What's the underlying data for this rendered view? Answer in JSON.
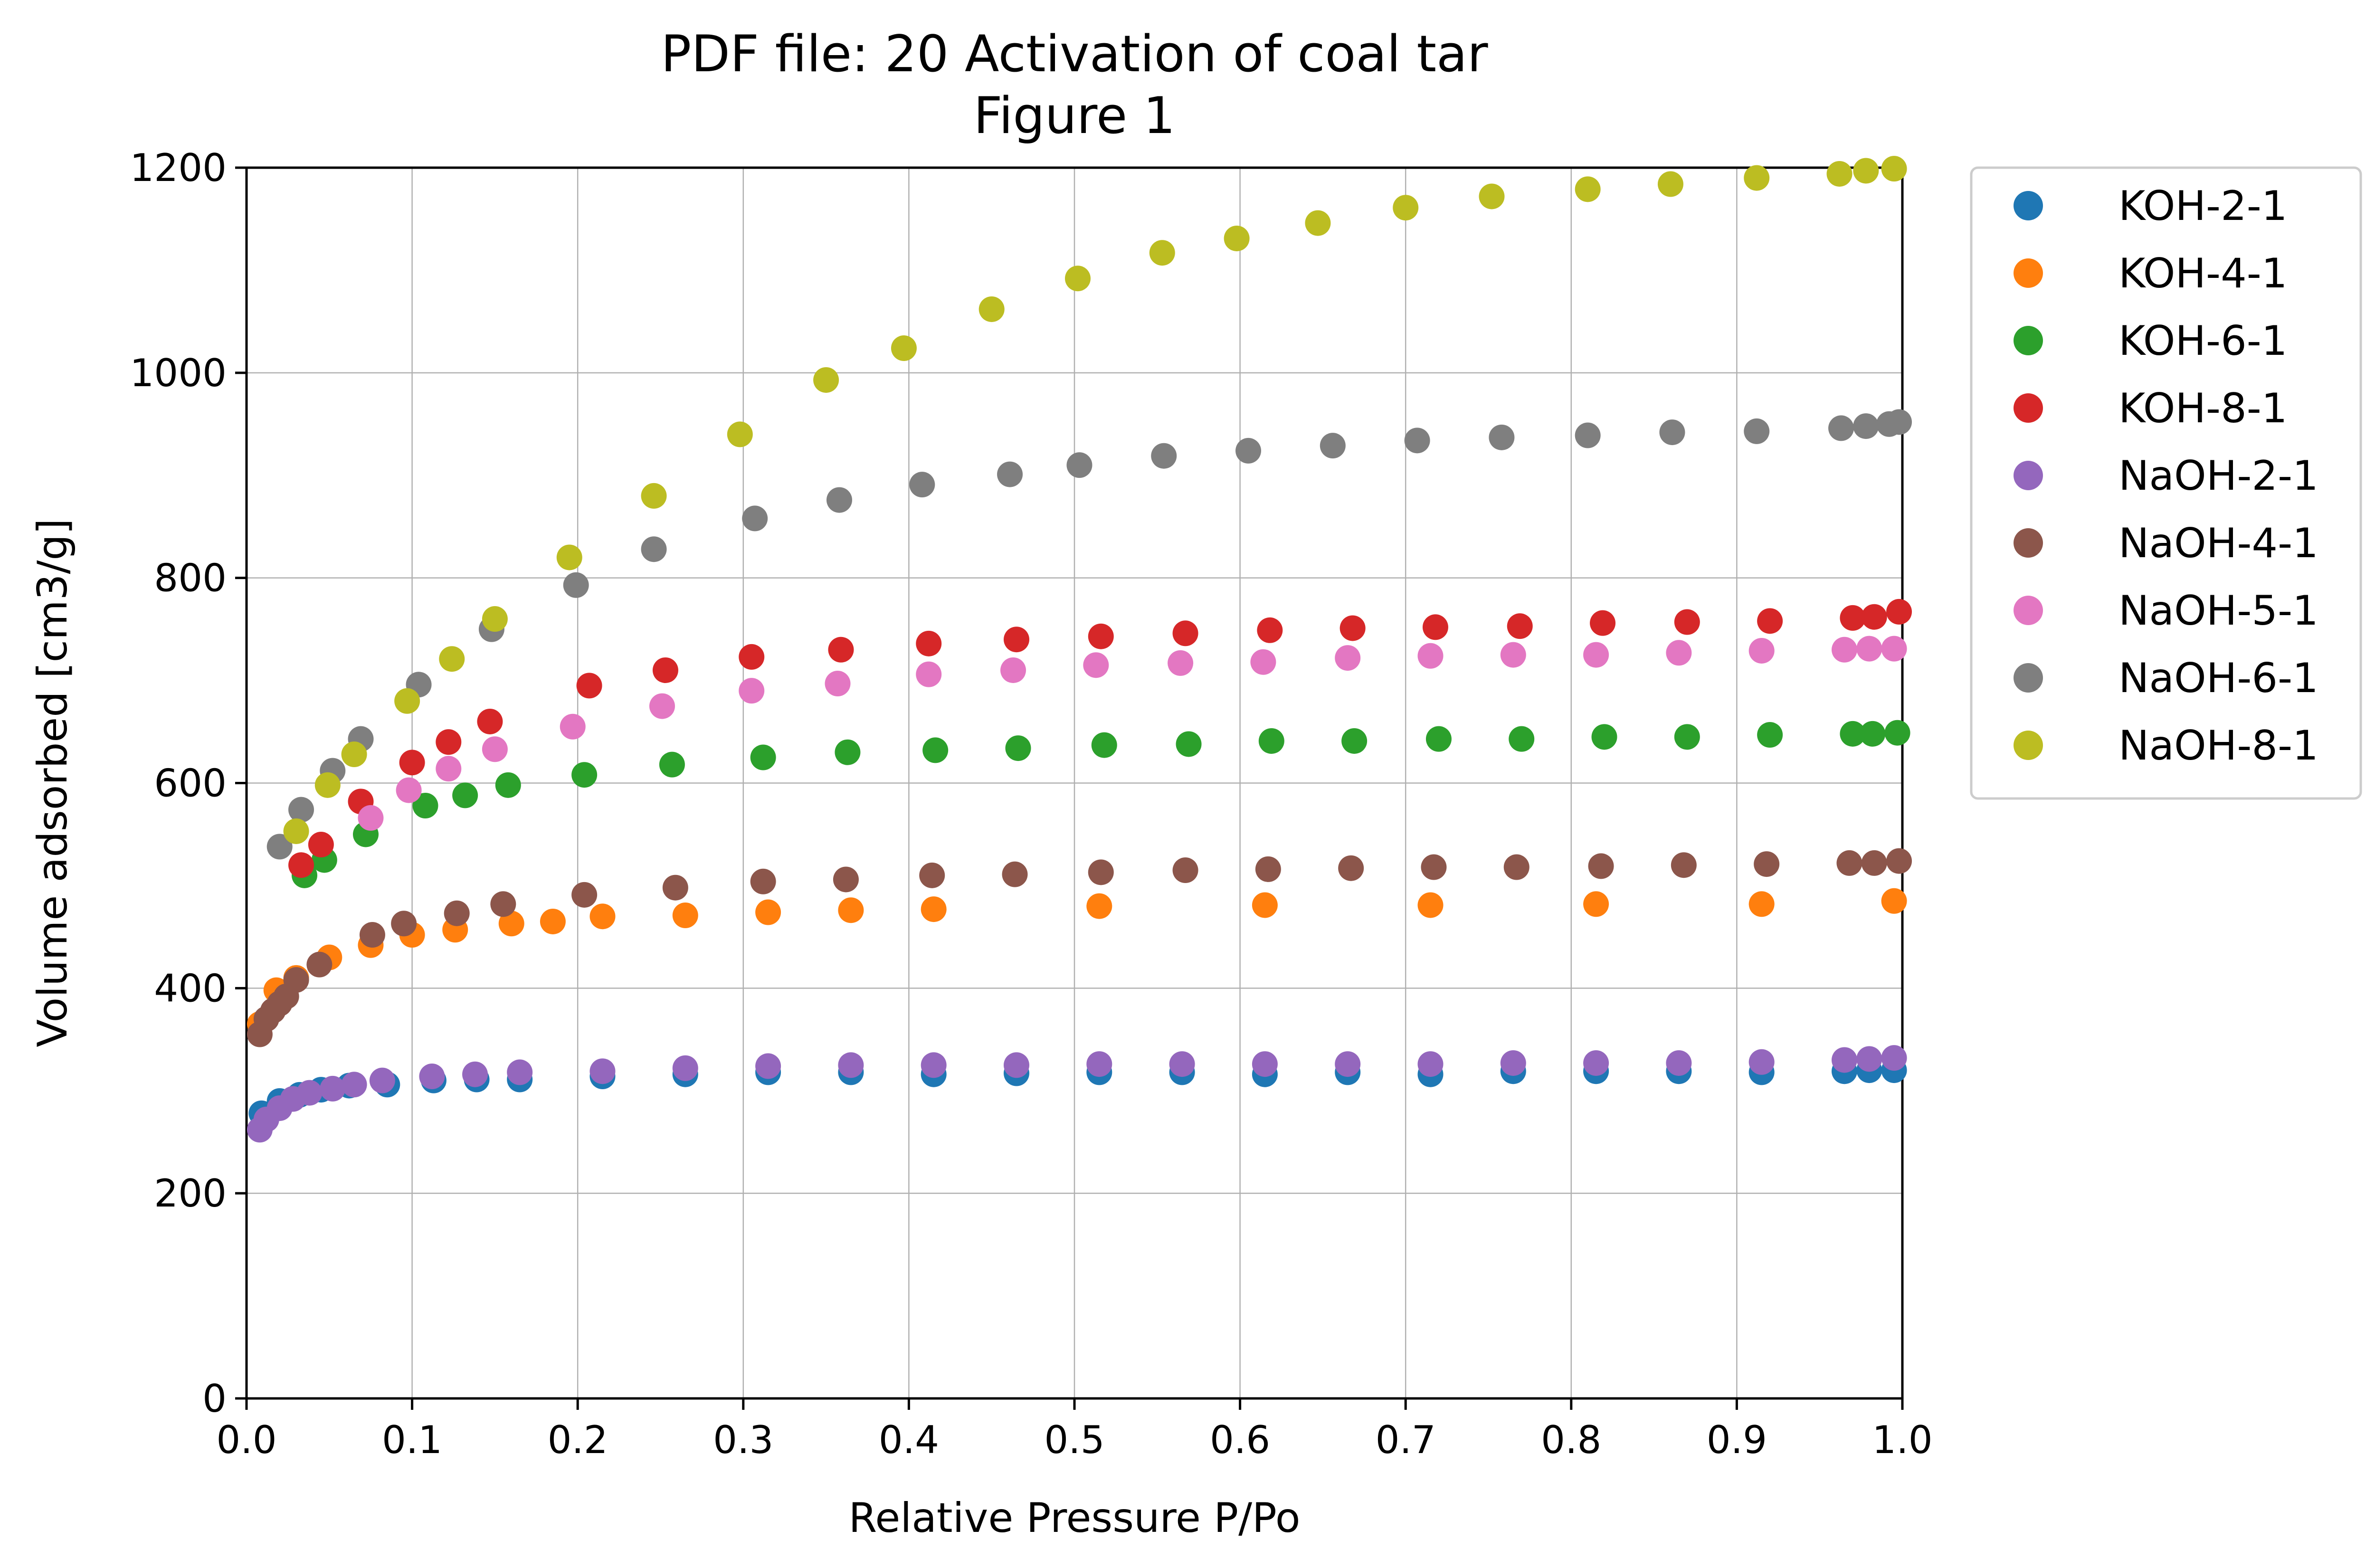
{
  "chart_data": {
    "type": "scatter",
    "title": "PDF file: 20 Activation of coal tar",
    "subtitle": "Figure 1",
    "xlabel": "Relative Pressure P/Po",
    "ylabel": "Volume adsorbed [cm3/g]",
    "xlim": [
      0,
      1
    ],
    "ylim": [
      0,
      1200
    ],
    "x_ticks": [
      "0.0",
      "0.1",
      "0.2",
      "0.3",
      "0.4",
      "0.5",
      "0.6",
      "0.7",
      "0.8",
      "0.9",
      "1.0"
    ],
    "y_ticks": [
      "0",
      "200",
      "400",
      "600",
      "800",
      "1000",
      "1200"
    ],
    "grid": true,
    "legend_position": "outside-right",
    "series": [
      {
        "name": "KOH-2-1",
        "color": "#1f77b4",
        "x": [
          0.009,
          0.02,
          0.032,
          0.045,
          0.062,
          0.085,
          0.113,
          0.139,
          0.165,
          0.215,
          0.265,
          0.315,
          0.365,
          0.415,
          0.465,
          0.515,
          0.565,
          0.615,
          0.665,
          0.715,
          0.765,
          0.815,
          0.865,
          0.915,
          0.965,
          0.98,
          0.995
        ],
        "y": [
          278,
          290,
          296,
          301,
          305,
          306,
          310,
          311,
          311,
          314,
          316,
          318,
          318,
          316,
          317,
          318,
          318,
          316,
          318,
          316,
          319,
          319,
          319,
          318,
          319,
          320,
          320
        ]
      },
      {
        "name": "KOH-4-1",
        "color": "#ff7f0e",
        "x": [
          0.008,
          0.018,
          0.03,
          0.05,
          0.075,
          0.1,
          0.126,
          0.16,
          0.185,
          0.215,
          0.265,
          0.315,
          0.365,
          0.415,
          0.515,
          0.615,
          0.715,
          0.815,
          0.915,
          0.995
        ],
        "y": [
          365,
          398,
          410,
          430,
          442,
          452,
          457,
          463,
          465,
          470,
          471,
          474,
          476,
          477,
          480,
          481,
          481,
          482,
          482,
          485
        ]
      },
      {
        "name": "KOH-6-1",
        "color": "#2ca02c",
        "x": [
          0.035,
          0.047,
          0.072,
          0.108,
          0.132,
          0.158,
          0.204,
          0.257,
          0.312,
          0.363,
          0.416,
          0.466,
          0.518,
          0.569,
          0.619,
          0.669,
          0.72,
          0.77,
          0.82,
          0.87,
          0.92,
          0.97,
          0.982,
          0.997
        ],
        "y": [
          510,
          525,
          550,
          578,
          588,
          598,
          608,
          618,
          625,
          630,
          632,
          634,
          637,
          638,
          641,
          641,
          643,
          643,
          645,
          645,
          647,
          648,
          648,
          649
        ]
      },
      {
        "name": "KOH-8-1",
        "color": "#d62728",
        "x": [
          0.033,
          0.045,
          0.069,
          0.1,
          0.122,
          0.147,
          0.207,
          0.253,
          0.305,
          0.359,
          0.412,
          0.465,
          0.516,
          0.567,
          0.618,
          0.668,
          0.718,
          0.769,
          0.819,
          0.87,
          0.92,
          0.97,
          0.983,
          0.998
        ],
        "y": [
          520,
          540,
          582,
          620,
          640,
          660,
          695,
          710,
          723,
          730,
          736,
          740,
          743,
          746,
          749,
          751,
          752,
          753,
          756,
          757,
          758,
          761,
          762,
          767
        ]
      },
      {
        "name": "NaOH-2-1",
        "color": "#9467bd",
        "x": [
          0.008,
          0.012,
          0.02,
          0.028,
          0.038,
          0.052,
          0.065,
          0.082,
          0.112,
          0.138,
          0.165,
          0.215,
          0.265,
          0.315,
          0.365,
          0.415,
          0.465,
          0.515,
          0.565,
          0.615,
          0.665,
          0.715,
          0.765,
          0.815,
          0.865,
          0.915,
          0.965,
          0.98,
          0.995
        ],
        "y": [
          262,
          272,
          283,
          292,
          298,
          302,
          306,
          310,
          314,
          316,
          318,
          319,
          322,
          324,
          325,
          325,
          325,
          326,
          326,
          326,
          326,
          326,
          327,
          327,
          327,
          328,
          330,
          331,
          332
        ]
      },
      {
        "name": "NaOH-4-1",
        "color": "#8c564b",
        "x": [
          0.008,
          0.012,
          0.016,
          0.02,
          0.024,
          0.03,
          0.044,
          0.076,
          0.095,
          0.127,
          0.155,
          0.204,
          0.259,
          0.312,
          0.362,
          0.414,
          0.464,
          0.516,
          0.567,
          0.617,
          0.667,
          0.717,
          0.767,
          0.818,
          0.868,
          0.918,
          0.968,
          0.983,
          0.998
        ],
        "y": [
          355,
          370,
          378,
          385,
          392,
          408,
          423,
          452,
          463,
          473,
          482,
          491,
          498,
          504,
          506,
          510,
          511,
          513,
          515,
          516,
          517,
          518,
          518,
          519,
          520,
          521,
          522,
          522,
          524
        ]
      },
      {
        "name": "NaOH-5-1",
        "color": "#e377c2",
        "x": [
          0.075,
          0.098,
          0.122,
          0.15,
          0.197,
          0.251,
          0.305,
          0.357,
          0.412,
          0.463,
          0.513,
          0.564,
          0.614,
          0.665,
          0.715,
          0.765,
          0.815,
          0.865,
          0.915,
          0.965,
          0.98,
          0.995
        ],
        "y": [
          566,
          593,
          614,
          633,
          655,
          675,
          690,
          697,
          706,
          710,
          715,
          717,
          718,
          722,
          724,
          725,
          725,
          727,
          729,
          730,
          731,
          731
        ]
      },
      {
        "name": "NaOH-6-1",
        "color": "#7f7f7f",
        "x": [
          0.02,
          0.033,
          0.052,
          0.069,
          0.104,
          0.148,
          0.199,
          0.246,
          0.307,
          0.358,
          0.408,
          0.461,
          0.503,
          0.554,
          0.605,
          0.656,
          0.707,
          0.758,
          0.81,
          0.861,
          0.912,
          0.963,
          0.978,
          0.992,
          0.998
        ],
        "y": [
          538,
          574,
          612,
          643,
          696,
          750,
          793,
          828,
          858,
          876,
          891,
          901,
          910,
          919,
          924,
          929,
          934,
          937,
          939,
          942,
          943,
          946,
          948,
          950,
          952
        ]
      },
      {
        "name": "NaOH-8-1",
        "color": "#bcbd22",
        "x": [
          0.03,
          0.049,
          0.065,
          0.097,
          0.124,
          0.15,
          0.195,
          0.246,
          0.298,
          0.35,
          0.397,
          0.45,
          0.502,
          0.553,
          0.598,
          0.647,
          0.7,
          0.752,
          0.81,
          0.86,
          0.912,
          0.962,
          0.978,
          0.995
        ],
        "y": [
          553,
          598,
          628,
          680,
          721,
          760,
          820,
          880,
          940,
          993,
          1024,
          1062,
          1092,
          1117,
          1131,
          1146,
          1161,
          1172,
          1179,
          1184,
          1190,
          1194,
          1197,
          1199
        ]
      }
    ]
  }
}
